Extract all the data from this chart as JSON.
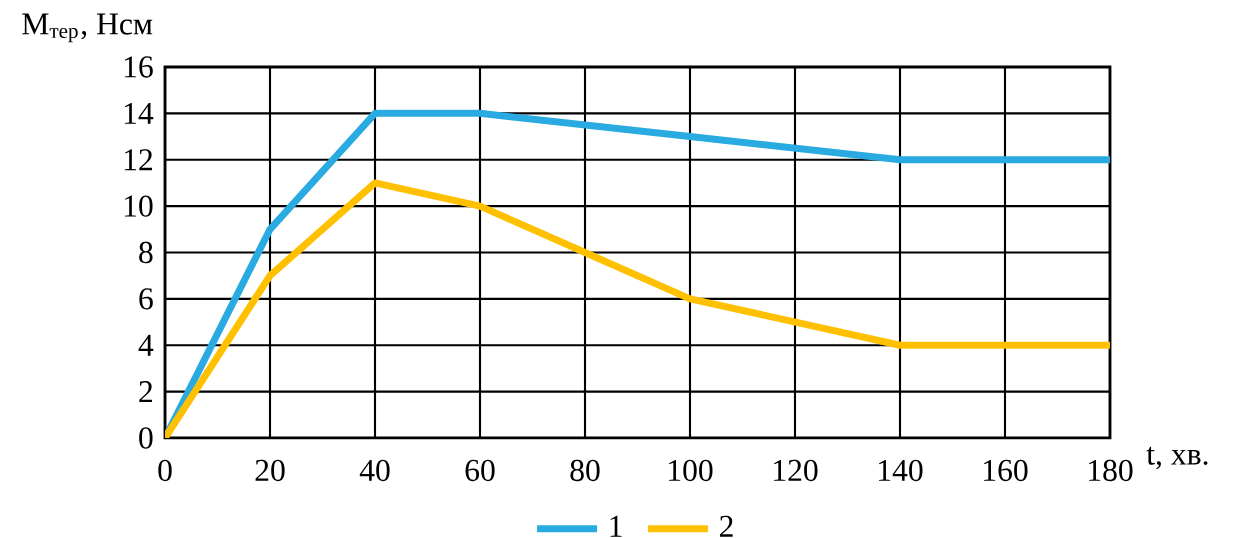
{
  "chart_data": {
    "type": "line",
    "xlabel": "t, хв.",
    "ylabel": "M$_{тер}$, Нсм",
    "series": [
      {
        "name": "1",
        "color": "#29abe2",
        "x": [
          0,
          20,
          40,
          60,
          100,
          140,
          180
        ],
        "values": [
          0,
          9,
          14,
          14,
          13,
          12,
          12
        ]
      },
      {
        "name": "2",
        "color": "#ffc000",
        "x": [
          0,
          20,
          40,
          60,
          80,
          100,
          140,
          180
        ],
        "values": [
          0,
          7,
          11,
          10,
          8,
          6,
          4,
          4
        ]
      }
    ],
    "xlim": [
      0,
      180
    ],
    "ylim": [
      0,
      16
    ],
    "xticks": [
      0,
      20,
      40,
      60,
      80,
      100,
      120,
      140,
      160,
      180
    ],
    "yticks": [
      0,
      2,
      4,
      6,
      8,
      10,
      12,
      14,
      16
    ],
    "grid": true,
    "legend": "bottom",
    "marker": "none",
    "line_style": "solid"
  }
}
